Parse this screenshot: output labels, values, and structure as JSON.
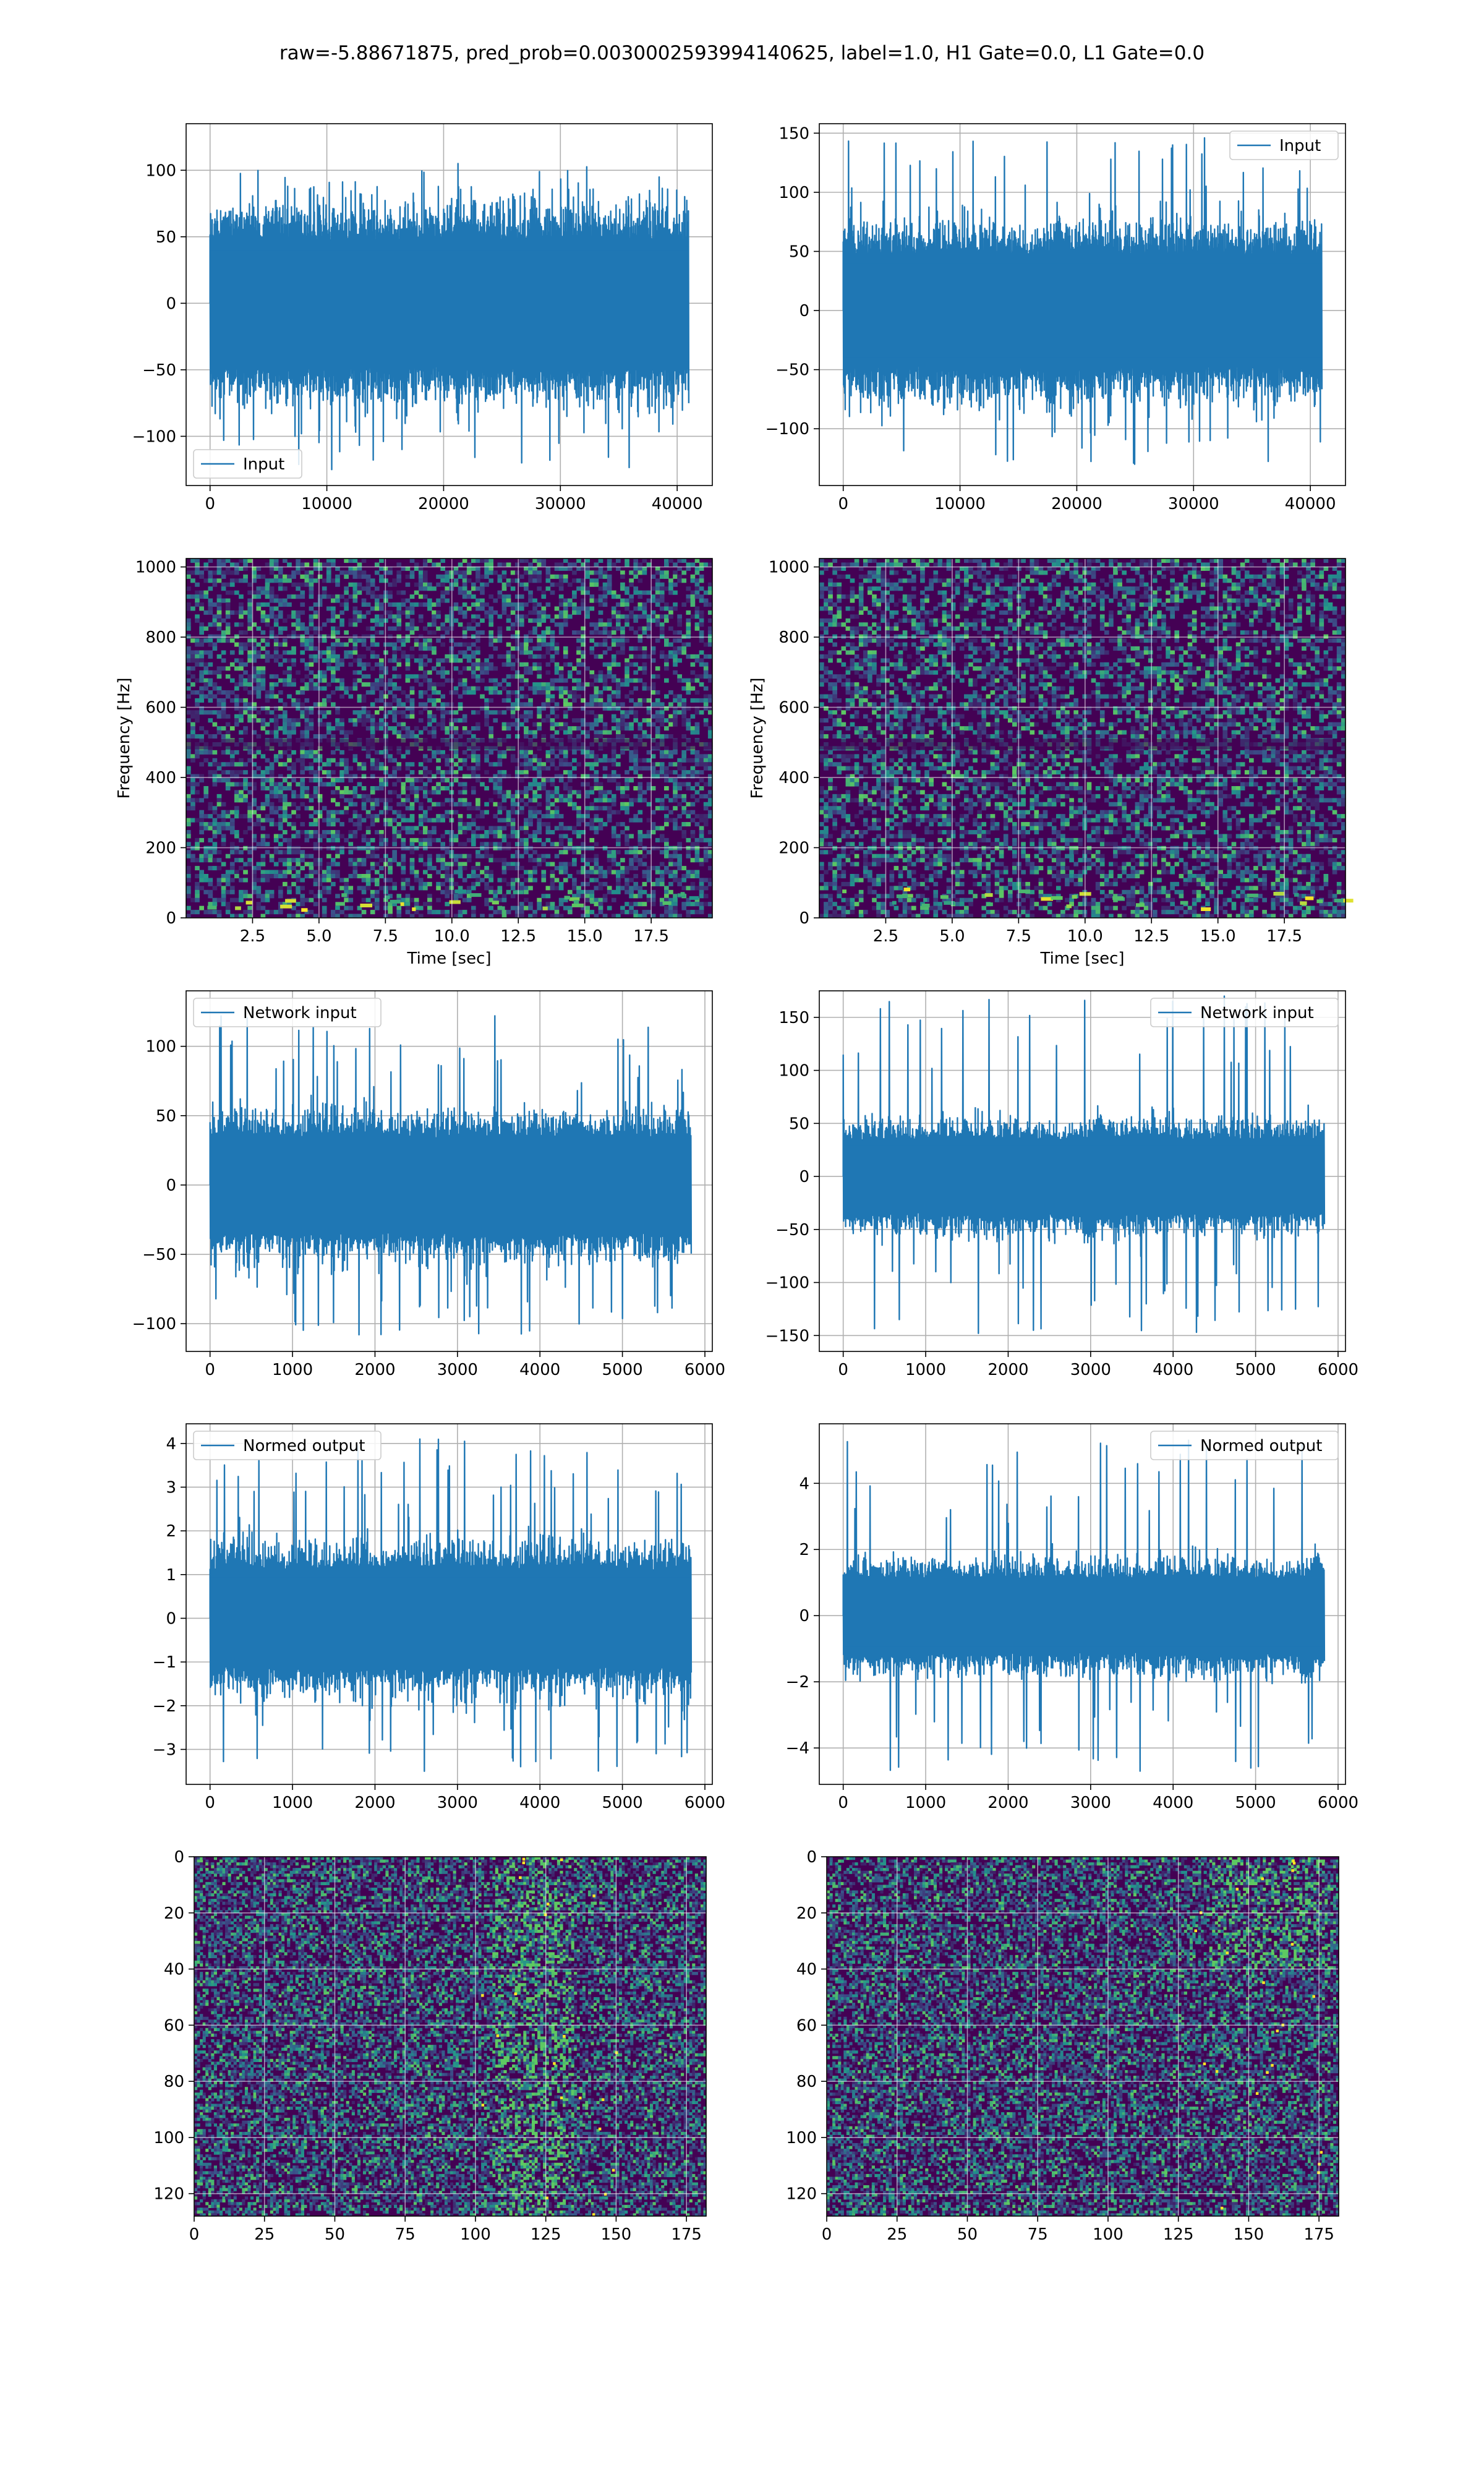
{
  "figure": {
    "suptitle": "raw=-5.88671875, pred_prob=0.0030002593994140625, label=1.0, H1 Gate=0.0, L1 Gate=0.0"
  },
  "colors": {
    "line": "#1f77b4",
    "grid": "#b0b0b0",
    "viridis_low": "#440154"
  },
  "chart_data": [
    {
      "id": "input-left",
      "type": "line",
      "legend": "Input",
      "legend_loc": "lower left",
      "xlim": [
        -2050,
        43010
      ],
      "ylim": [
        -137,
        135
      ],
      "xticks": [
        0,
        10000,
        20000,
        30000,
        40000
      ],
      "xticklabels": [
        "0",
        "10000",
        "20000",
        "30000",
        "40000"
      ],
      "yticks": [
        -100,
        -50,
        0,
        50,
        100
      ],
      "yticklabels": [
        "−100",
        "−50",
        "0",
        "50",
        "100"
      ],
      "xlabel": "",
      "ylabel": "",
      "signal": {
        "x_end": 40960,
        "band": 55,
        "peak_pos": 105,
        "peak_neg": -125,
        "n": 900
      },
      "grid": true
    },
    {
      "id": "input-right",
      "type": "line",
      "legend": "Input",
      "legend_loc": "upper right",
      "xlim": [
        -2050,
        43010
      ],
      "ylim": [
        -148,
        158
      ],
      "xticks": [
        0,
        10000,
        20000,
        30000,
        40000
      ],
      "xticklabels": [
        "0",
        "10000",
        "20000",
        "30000",
        "40000"
      ],
      "yticks": [
        -100,
        -50,
        0,
        50,
        100,
        150
      ],
      "yticklabels": [
        "−100",
        "−50",
        "0",
        "50",
        "100",
        "150"
      ],
      "xlabel": "",
      "ylabel": "",
      "signal": {
        "x_end": 40960,
        "band": 55,
        "peak_pos": 146,
        "peak_neg": -130,
        "n": 900
      },
      "grid": true
    },
    {
      "id": "spec-left",
      "type": "heatmap",
      "colormap": "viridis",
      "xlim": [
        0,
        19.8
      ],
      "ylim": [
        0,
        1024
      ],
      "xticks": [
        2.5,
        5.0,
        7.5,
        10.0,
        12.5,
        15.0,
        17.5
      ],
      "xticklabels": [
        "2.5",
        "5.0",
        "7.5",
        "10.0",
        "12.5",
        "15.0",
        "17.5"
      ],
      "yticks": [
        0,
        200,
        400,
        600,
        800,
        1000
      ],
      "yticklabels": [
        "0",
        "200",
        "400",
        "600",
        "800",
        "1000"
      ],
      "xlabel": "Time [sec]",
      "ylabel": "Frequency [Hz]",
      "grid": true
    },
    {
      "id": "spec-right",
      "type": "heatmap",
      "colormap": "viridis",
      "xlim": [
        0,
        19.8
      ],
      "ylim": [
        0,
        1024
      ],
      "xticks": [
        2.5,
        5.0,
        7.5,
        10.0,
        12.5,
        15.0,
        17.5
      ],
      "xticklabels": [
        "2.5",
        "5.0",
        "7.5",
        "10.0",
        "12.5",
        "15.0",
        "17.5"
      ],
      "yticks": [
        0,
        200,
        400,
        600,
        800,
        1000
      ],
      "yticklabels": [
        "0",
        "200",
        "400",
        "600",
        "800",
        "1000"
      ],
      "xlabel": "Time [sec]",
      "ylabel": "Frequency [Hz]",
      "grid": true
    },
    {
      "id": "net-left",
      "type": "line",
      "legend": "Network input",
      "legend_loc": "upper left",
      "xlim": [
        -290,
        6090
      ],
      "ylim": [
        -120,
        140
      ],
      "xticks": [
        0,
        1000,
        2000,
        3000,
        4000,
        5000,
        6000
      ],
      "xticklabels": [
        "0",
        "1000",
        "2000",
        "3000",
        "4000",
        "5000",
        "6000"
      ],
      "yticks": [
        -100,
        -50,
        0,
        50,
        100
      ],
      "yticklabels": [
        "−100",
        "−50",
        "0",
        "50",
        "100"
      ],
      "xlabel": "",
      "ylabel": "",
      "signal": {
        "x_end": 5830,
        "band": 40,
        "peak_pos": 122,
        "peak_neg": -108,
        "n": 700
      },
      "grid": true
    },
    {
      "id": "net-right",
      "type": "line",
      "legend": "Network input",
      "legend_loc": "upper right",
      "xlim": [
        -290,
        6090
      ],
      "ylim": [
        -165,
        175
      ],
      "xticks": [
        0,
        1000,
        2000,
        3000,
        4000,
        5000,
        6000
      ],
      "xticklabels": [
        "0",
        "1000",
        "2000",
        "3000",
        "4000",
        "5000",
        "6000"
      ],
      "yticks": [
        -150,
        -100,
        -50,
        0,
        50,
        100,
        150
      ],
      "yticklabels": [
        "−150",
        "−100",
        "−50",
        "0",
        "50",
        "100",
        "150"
      ],
      "xlabel": "",
      "ylabel": "",
      "signal": {
        "x_end": 5830,
        "band": 40,
        "peak_pos": 170,
        "peak_neg": -148,
        "n": 700
      },
      "grid": true
    },
    {
      "id": "norm-left",
      "type": "line",
      "legend": "Normed output",
      "legend_loc": "upper left",
      "xlim": [
        -290,
        6090
      ],
      "ylim": [
        -3.8,
        4.45
      ],
      "xticks": [
        0,
        1000,
        2000,
        3000,
        4000,
        5000,
        6000
      ],
      "xticklabels": [
        "0",
        "1000",
        "2000",
        "3000",
        "4000",
        "5000",
        "6000"
      ],
      "yticks": [
        -3,
        -2,
        -1,
        0,
        1,
        2,
        3,
        4
      ],
      "yticklabels": [
        "−3",
        "−2",
        "−1",
        "0",
        "1",
        "2",
        "3",
        "4"
      ],
      "xlabel": "",
      "ylabel": "",
      "signal": {
        "x_end": 5830,
        "band": 1.3,
        "peak_pos": 4.1,
        "peak_neg": -3.5,
        "n": 700
      },
      "grid": true
    },
    {
      "id": "norm-right",
      "type": "line",
      "legend": "Normed output",
      "legend_loc": "upper right",
      "xlim": [
        -290,
        6090
      ],
      "ylim": [
        -5.1,
        5.8
      ],
      "xticks": [
        0,
        1000,
        2000,
        3000,
        4000,
        5000,
        6000
      ],
      "xticklabels": [
        "0",
        "1000",
        "2000",
        "3000",
        "4000",
        "5000",
        "6000"
      ],
      "yticks": [
        -4,
        -2,
        0,
        2,
        4
      ],
      "yticklabels": [
        "−4",
        "−2",
        "0",
        "2",
        "4"
      ],
      "xlabel": "",
      "ylabel": "",
      "signal": {
        "x_end": 5830,
        "band": 1.3,
        "peak_pos": 5.3,
        "peak_neg": -4.7,
        "n": 700
      },
      "grid": true
    },
    {
      "id": "feat-left",
      "type": "heatmap",
      "colormap": "viridis",
      "image_origin": "upper",
      "xlim": [
        0,
        182
      ],
      "ylim": [
        128,
        0
      ],
      "xticks": [
        0,
        25,
        50,
        75,
        100,
        125,
        150,
        175
      ],
      "xticklabels": [
        "0",
        "25",
        "50",
        "75",
        "100",
        "125",
        "150",
        "175"
      ],
      "yticks": [
        0,
        20,
        40,
        60,
        80,
        100,
        120
      ],
      "yticklabels": [
        "0",
        "20",
        "40",
        "60",
        "80",
        "100",
        "120"
      ],
      "xlabel": "",
      "ylabel": "",
      "grid": true
    },
    {
      "id": "feat-right",
      "type": "heatmap",
      "colormap": "viridis",
      "image_origin": "upper",
      "xlim": [
        0,
        182
      ],
      "ylim": [
        128,
        0
      ],
      "xticks": [
        0,
        25,
        50,
        75,
        100,
        125,
        150,
        175
      ],
      "xticklabels": [
        "0",
        "25",
        "50",
        "75",
        "100",
        "125",
        "150",
        "175"
      ],
      "yticks": [
        0,
        20,
        40,
        60,
        80,
        100,
        120
      ],
      "yticklabels": [
        "0",
        "20",
        "40",
        "60",
        "80",
        "100",
        "120"
      ],
      "xlabel": "",
      "ylabel": "",
      "grid": true
    }
  ]
}
